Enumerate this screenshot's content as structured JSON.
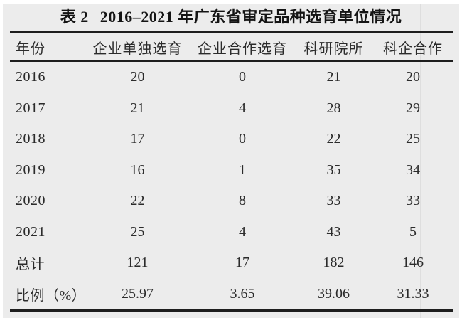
{
  "caption": {
    "label": "表 2",
    "title": "2016–2021 年广东省审定品种选育单位情况"
  },
  "table": {
    "columns": [
      "年份",
      "企业单独选育",
      "企业合作选育",
      "科研院所",
      "科企合作"
    ],
    "rows": [
      [
        "2016",
        "20",
        "0",
        "21",
        "20"
      ],
      [
        "2017",
        "21",
        "4",
        "28",
        "29"
      ],
      [
        "2018",
        "17",
        "0",
        "22",
        "25"
      ],
      [
        "2019",
        "16",
        "1",
        "35",
        "34"
      ],
      [
        "2020",
        "22",
        "8",
        "33",
        "33"
      ],
      [
        "2021",
        "25",
        "4",
        "43",
        "5"
      ],
      [
        "总计",
        "121",
        "17",
        "182",
        "146"
      ],
      [
        "比例（%）",
        "25.97",
        "3.65",
        "39.06",
        "31.33"
      ]
    ]
  },
  "colors": {
    "scan_background": "#ececec",
    "rule": "#1e1e1e",
    "text": "#2b2b2b",
    "title_text": "#141414"
  }
}
